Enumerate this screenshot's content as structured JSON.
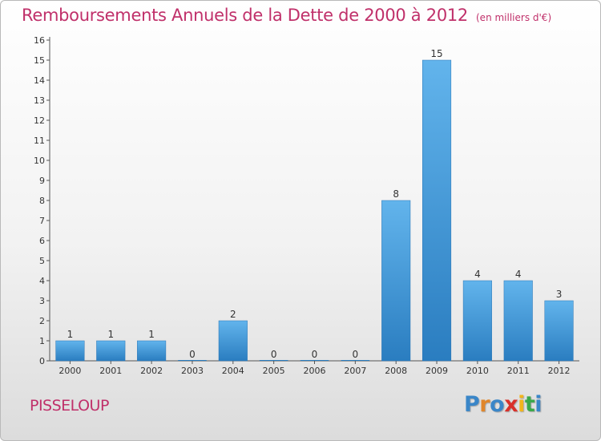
{
  "title": "Remboursements Annuels de la Dette de 2000 à 2012",
  "unit_note": "(en milliers d'€)",
  "commune": "PISSELOUP",
  "logo": {
    "text": "Proxiti",
    "colors": [
      "#3a86c8",
      "#e0862a",
      "#3a86c8",
      "#d9302a",
      "#f2b51c",
      "#3aa84a",
      "#3a86c8"
    ]
  },
  "colors": {
    "title": "#c0306a",
    "bar_top": "#62b4ec",
    "bar_bottom": "#2a7dc0",
    "axis": "#555555"
  },
  "chart_data": {
    "type": "bar",
    "categories": [
      "2000",
      "2001",
      "2002",
      "2003",
      "2004",
      "2005",
      "2006",
      "2007",
      "2008",
      "2009",
      "2010",
      "2011",
      "2012"
    ],
    "values": [
      1,
      1,
      1,
      0,
      2,
      0,
      0,
      0,
      8,
      15,
      4,
      4,
      3
    ],
    "ylim": [
      0,
      16
    ],
    "yticks": [
      0,
      1,
      2,
      3,
      4,
      5,
      6,
      7,
      8,
      9,
      10,
      11,
      12,
      13,
      14,
      15,
      16
    ],
    "grid": false,
    "data_labels": true
  }
}
